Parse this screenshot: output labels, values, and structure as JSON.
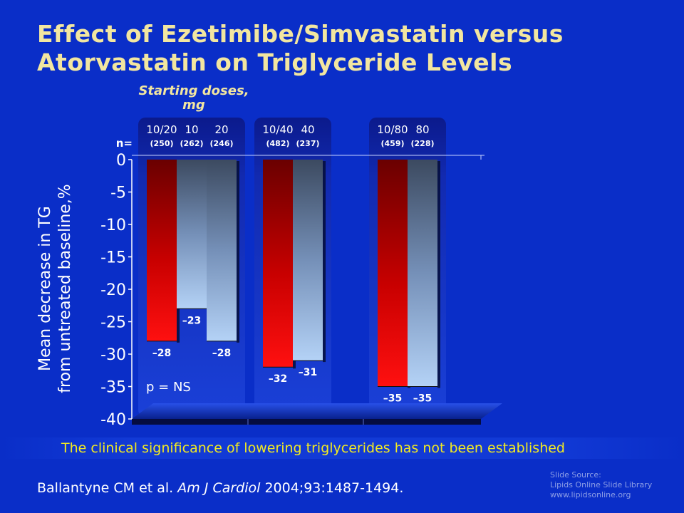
{
  "slide": {
    "title_line1": "Effect of Ezetimibe/Simvastatin versus",
    "title_line2": "Atorvastatin on Triglyceride Levels",
    "starting_doses_line1": "Starting doses,",
    "starting_doses_line2": "mg",
    "n_label": "n=",
    "ylabel_line1": "Mean decrease in TG",
    "ylabel_line2": "from untreated baseline,%",
    "p_value": "p = NS",
    "note": "The clinical significance of lowering triglycerides has not been established",
    "reference_authors": "Ballantyne CM et al. ",
    "reference_journal": "Am J Cardiol",
    "reference_details": " 2004;93:1487-1494.",
    "source_line1": "Slide Source:",
    "source_line2": "Lipids Online Slide Library",
    "source_line3": "www.lipidsonline.org"
  },
  "colors": {
    "background": "#0a2ec8",
    "title": "#f2e6a0",
    "ezetimibe_simvastatin": "#e00000",
    "atorvastatin": "#a8c8f0",
    "note_text": "#f2ea20"
  },
  "chart_data": {
    "type": "bar",
    "ylim": [
      -40,
      0
    ],
    "yticks": [
      0,
      -5,
      -10,
      -15,
      -20,
      -25,
      -30,
      -35,
      -40
    ],
    "ylabel": "Mean decrease in TG from untreated baseline,%",
    "groups": [
      {
        "bars": [
          {
            "dose": "10/20",
            "n": "(250)",
            "value": -28,
            "label": "–28",
            "series": "ezetimibe_simvastatin"
          },
          {
            "dose": "10",
            "n": "(262)",
            "value": -23,
            "label": "–23",
            "series": "atorvastatin"
          },
          {
            "dose": "20",
            "n": "(246)",
            "value": -28,
            "label": "–28",
            "series": "atorvastatin"
          }
        ]
      },
      {
        "bars": [
          {
            "dose": "10/40",
            "n": "(482)",
            "value": -32,
            "label": "–32",
            "series": "ezetimibe_simvastatin"
          },
          {
            "dose": "40",
            "n": "(237)",
            "value": -31,
            "label": "–31",
            "series": "atorvastatin"
          }
        ]
      },
      {
        "bars": [
          {
            "dose": "10/80",
            "n": "(459)",
            "value": -35,
            "label": "–35",
            "series": "ezetimibe_simvastatin"
          },
          {
            "dose": "80",
            "n": "(228)",
            "value": -35,
            "label": "–35",
            "series": "atorvastatin"
          }
        ]
      }
    ]
  }
}
